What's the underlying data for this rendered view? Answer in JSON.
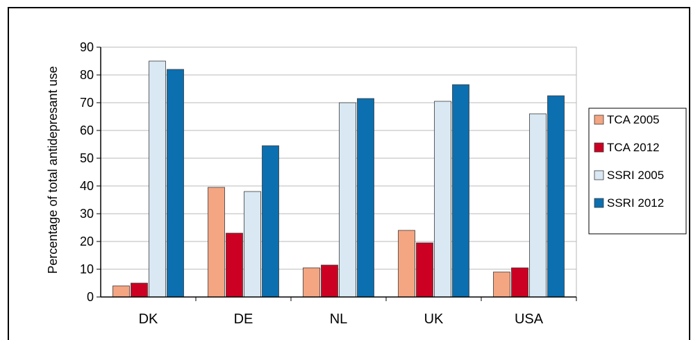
{
  "chart_data": {
    "type": "bar",
    "title": "",
    "xlabel": "",
    "ylabel": "Percentage of total antidepresant use",
    "ylim": [
      0,
      90
    ],
    "yticks": [
      0,
      10,
      20,
      30,
      40,
      50,
      60,
      70,
      80,
      90
    ],
    "grid": true,
    "legend_position": "right",
    "categories": [
      "DK",
      "DE",
      "NL",
      "UK",
      "USA"
    ],
    "series": [
      {
        "name": "TCA 2005",
        "color": "#f4a582",
        "values": [
          4,
          39.5,
          10.5,
          24,
          9
        ]
      },
      {
        "name": "TCA 2012",
        "color": "#cc0022",
        "values": [
          5,
          23,
          11.5,
          19.5,
          10.5
        ]
      },
      {
        "name": "SSRI 2005",
        "color": "#d9e8f3",
        "values": [
          85,
          38,
          70,
          70.5,
          66
        ]
      },
      {
        "name": "SSRI 2012",
        "color": "#0b6fb0",
        "values": [
          82,
          54.5,
          71.5,
          76.5,
          72.5
        ]
      }
    ]
  }
}
